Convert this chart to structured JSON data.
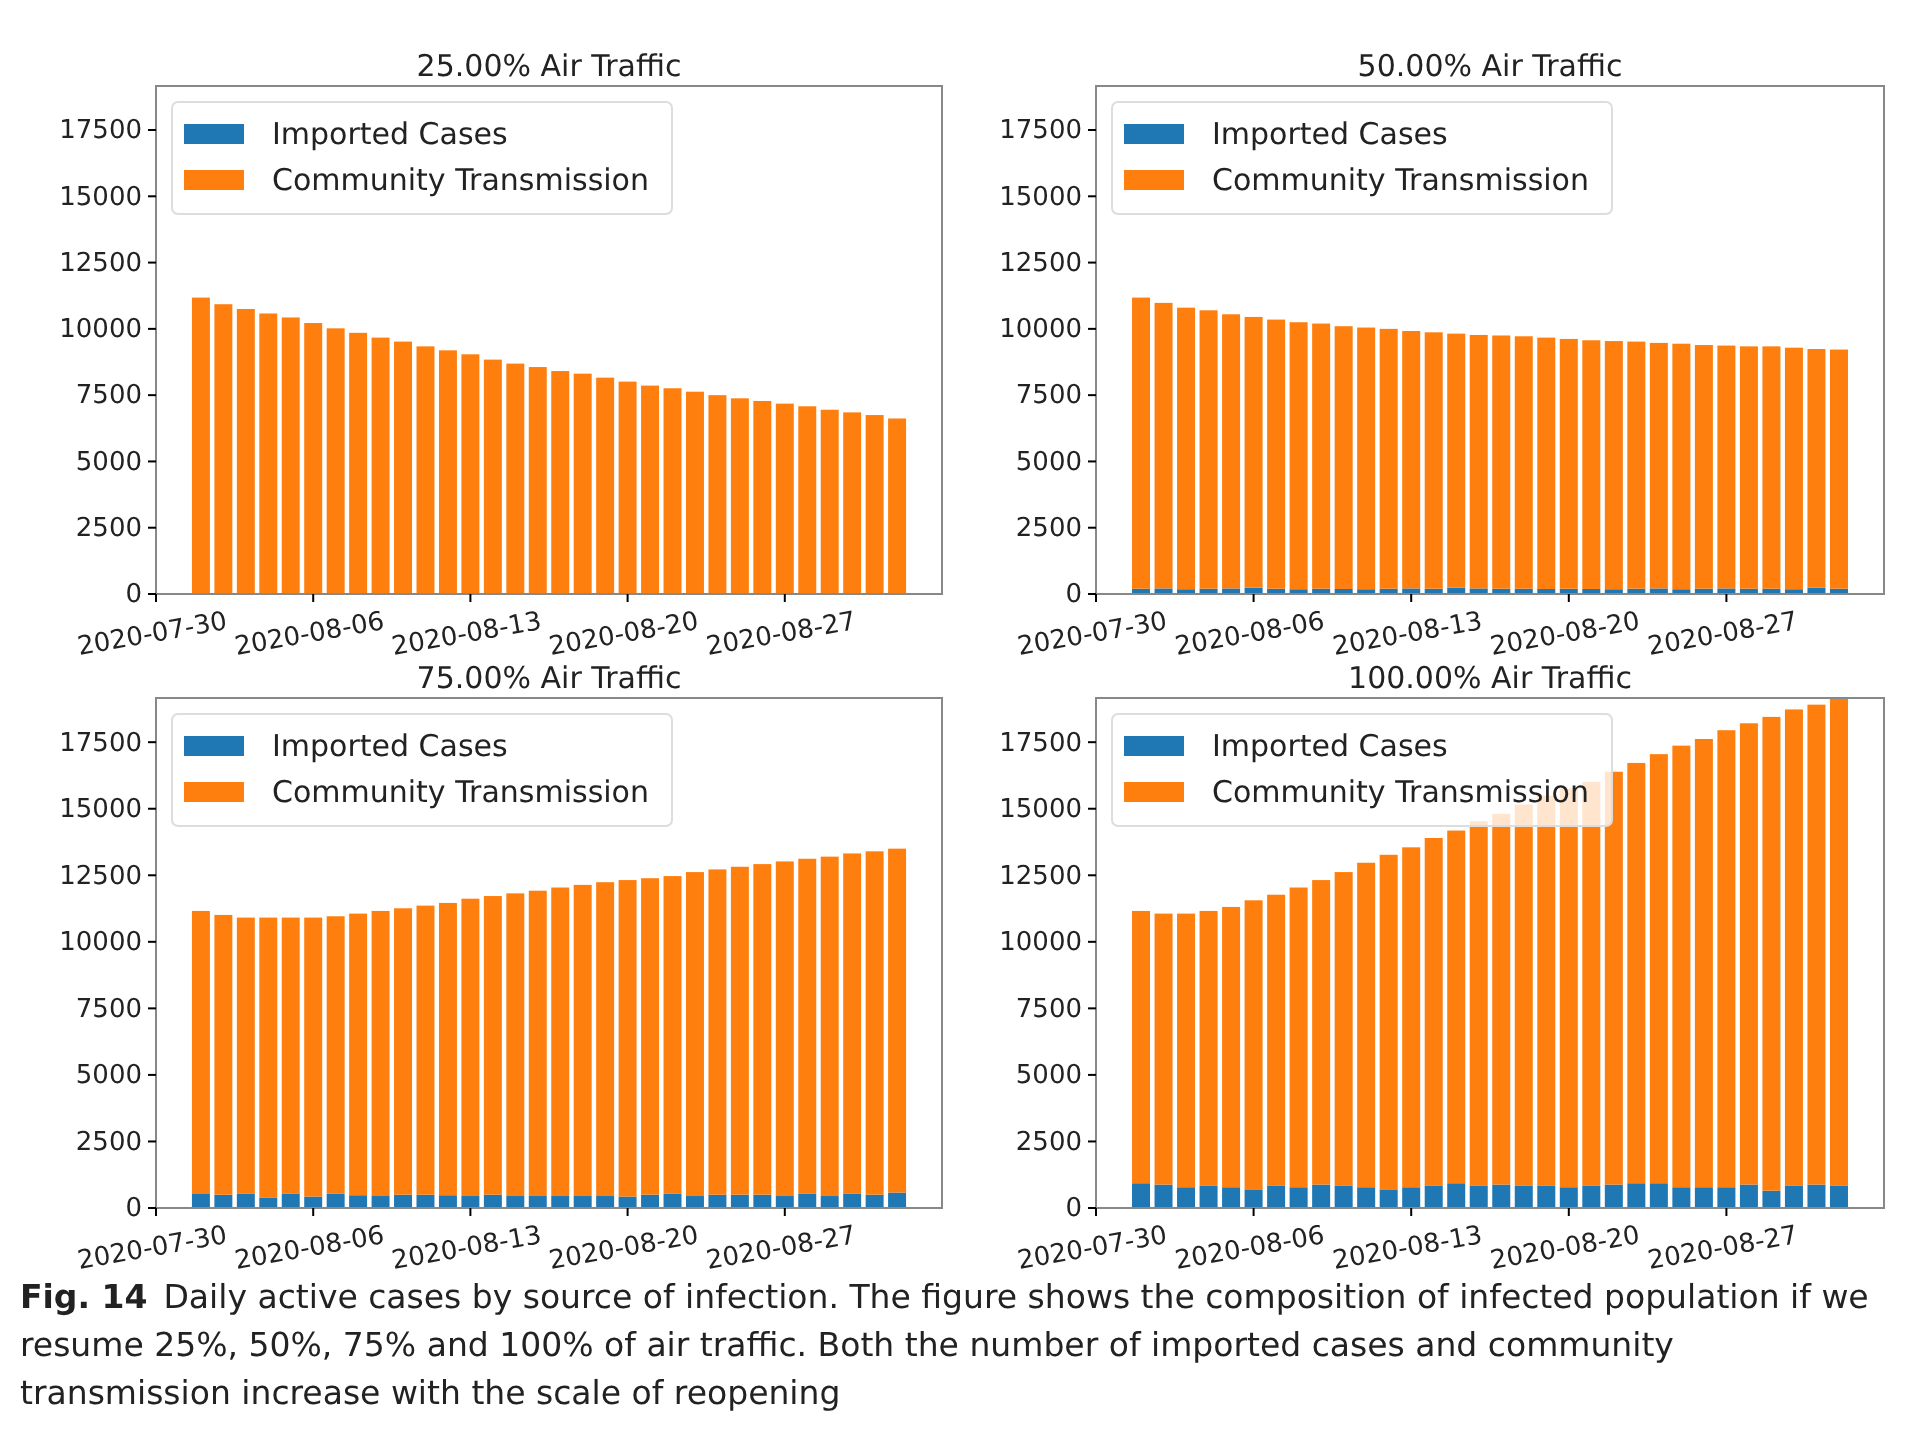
{
  "chart_data": [
    {
      "type": "bar",
      "title": "25.00% Air Traffic",
      "stacked": true,
      "legend": "top left",
      "x": [
        "2020-08-01",
        "2020-08-02",
        "2020-08-03",
        "2020-08-04",
        "2020-08-05",
        "2020-08-06",
        "2020-08-07",
        "2020-08-08",
        "2020-08-09",
        "2020-08-10",
        "2020-08-11",
        "2020-08-12",
        "2020-08-13",
        "2020-08-14",
        "2020-08-15",
        "2020-08-16",
        "2020-08-17",
        "2020-08-18",
        "2020-08-19",
        "2020-08-20",
        "2020-08-21",
        "2020-08-22",
        "2020-08-23",
        "2020-08-24",
        "2020-08-25",
        "2020-08-26",
        "2020-08-27",
        "2020-08-28",
        "2020-08-29",
        "2020-08-30",
        "2020-08-31",
        "2020-09-01"
      ],
      "xlim": [
        "2020-07-30",
        "2020-09-03"
      ],
      "xticks": [
        "2020-07-30",
        "2020-08-06",
        "2020-08-13",
        "2020-08-20",
        "2020-08-27"
      ],
      "ylim": [
        0,
        19160
      ],
      "yticks": [
        0,
        2500,
        5000,
        7500,
        10000,
        12500,
        15000,
        17500
      ],
      "series": [
        {
          "name": "Imported Cases",
          "color": "#1f77b4",
          "values": [
            30,
            30,
            30,
            30,
            30,
            30,
            30,
            30,
            30,
            30,
            30,
            30,
            30,
            30,
            30,
            30,
            30,
            30,
            30,
            30,
            30,
            30,
            30,
            30,
            30,
            30,
            30,
            30,
            30,
            30,
            30,
            30
          ]
        },
        {
          "name": "Community Transmission",
          "color": "#ff7f0e",
          "values": [
            11150,
            10900,
            10720,
            10550,
            10400,
            10190,
            9990,
            9820,
            9640,
            9490,
            9310,
            9160,
            9010,
            8810,
            8660,
            8530,
            8380,
            8280,
            8130,
            7980,
            7830,
            7730,
            7600,
            7470,
            7350,
            7250,
            7150,
            7050,
            6920,
            6820,
            6720,
            6590
          ]
        }
      ],
      "annotations": [
        "Fig. 14",
        "Daily active cases by source of infection. The figure shows the composition of infected population if we resume 25%, 50%, 75% and 100% of air traffic. Both the number of imported cases and community transmission increase with the scale of reopening"
      ]
    },
    {
      "type": "bar",
      "title": "50.00% Air Traffic",
      "stacked": true,
      "legend": "top left",
      "x": [
        "2020-08-01",
        "2020-08-02",
        "2020-08-03",
        "2020-08-04",
        "2020-08-05",
        "2020-08-06",
        "2020-08-07",
        "2020-08-08",
        "2020-08-09",
        "2020-08-10",
        "2020-08-11",
        "2020-08-12",
        "2020-08-13",
        "2020-08-14",
        "2020-08-15",
        "2020-08-16",
        "2020-08-17",
        "2020-08-18",
        "2020-08-19",
        "2020-08-20",
        "2020-08-21",
        "2020-08-22",
        "2020-08-23",
        "2020-08-24",
        "2020-08-25",
        "2020-08-26",
        "2020-08-27",
        "2020-08-28",
        "2020-08-29",
        "2020-08-30",
        "2020-08-31",
        "2020-09-01"
      ],
      "xlim": [
        "2020-07-30",
        "2020-09-03"
      ],
      "xticks": [
        "2020-07-30",
        "2020-08-06",
        "2020-08-13",
        "2020-08-20",
        "2020-08-27"
      ],
      "ylim": [
        0,
        19160
      ],
      "yticks": [
        0,
        2500,
        5000,
        7500,
        10000,
        12500,
        15000,
        17500
      ],
      "series": [
        {
          "name": "Imported Cases",
          "color": "#1f77b4",
          "values": [
            200,
            210,
            180,
            200,
            210,
            240,
            200,
            180,
            200,
            190,
            180,
            200,
            210,
            200,
            240,
            210,
            200,
            200,
            190,
            200,
            190,
            180,
            200,
            210,
            180,
            200,
            210,
            200,
            200,
            180,
            240,
            200
          ]
        },
        {
          "name": "Community Transmission",
          "color": "#ff7f0e",
          "values": [
            10980,
            10770,
            10620,
            10500,
            10340,
            10210,
            10150,
            10070,
            10000,
            9910,
            9870,
            9800,
            9710,
            9670,
            9580,
            9560,
            9550,
            9520,
            9480,
            9420,
            9380,
            9360,
            9320,
            9260,
            9260,
            9190,
            9160,
            9140,
            9140,
            9110,
            9000,
            9020
          ]
        }
      ]
    },
    {
      "type": "bar",
      "title": "75.00% Air Traffic",
      "stacked": true,
      "legend": "top left",
      "x": [
        "2020-08-01",
        "2020-08-02",
        "2020-08-03",
        "2020-08-04",
        "2020-08-05",
        "2020-08-06",
        "2020-08-07",
        "2020-08-08",
        "2020-08-09",
        "2020-08-10",
        "2020-08-11",
        "2020-08-12",
        "2020-08-13",
        "2020-08-14",
        "2020-08-15",
        "2020-08-16",
        "2020-08-17",
        "2020-08-18",
        "2020-08-19",
        "2020-08-20",
        "2020-08-21",
        "2020-08-22",
        "2020-08-23",
        "2020-08-24",
        "2020-08-25",
        "2020-08-26",
        "2020-08-27",
        "2020-08-28",
        "2020-08-29",
        "2020-08-30",
        "2020-08-31",
        "2020-09-01"
      ],
      "xlim": [
        "2020-07-30",
        "2020-09-03"
      ],
      "xticks": [
        "2020-07-30",
        "2020-08-06",
        "2020-08-13",
        "2020-08-20",
        "2020-08-27"
      ],
      "ylim": [
        0,
        19160
      ],
      "yticks": [
        0,
        2500,
        5000,
        7500,
        10000,
        12500,
        15000,
        17500
      ],
      "series": [
        {
          "name": "Imported Cases",
          "color": "#1f77b4",
          "values": [
            550,
            500,
            530,
            380,
            530,
            430,
            530,
            480,
            450,
            500,
            500,
            480,
            450,
            500,
            450,
            450,
            450,
            450,
            450,
            430,
            500,
            530,
            450,
            500,
            500,
            500,
            450,
            530,
            450,
            530,
            500,
            580
          ]
        },
        {
          "name": "Community Transmission",
          "color": "#ff7f0e",
          "values": [
            10610,
            10510,
            10380,
            10530,
            10380,
            10480,
            10430,
            10580,
            10710,
            10760,
            10860,
            10980,
            11170,
            11220,
            11370,
            11470,
            11590,
            11690,
            11790,
            11890,
            11890,
            11940,
            12170,
            12220,
            12320,
            12420,
            12570,
            12590,
            12750,
            12790,
            12900,
            12920
          ]
        }
      ]
    },
    {
      "type": "bar",
      "title": "100.00% Air Traffic",
      "stacked": true,
      "legend": "top left",
      "x": [
        "2020-08-01",
        "2020-08-02",
        "2020-08-03",
        "2020-08-04",
        "2020-08-05",
        "2020-08-06",
        "2020-08-07",
        "2020-08-08",
        "2020-08-09",
        "2020-08-10",
        "2020-08-11",
        "2020-08-12",
        "2020-08-13",
        "2020-08-14",
        "2020-08-15",
        "2020-08-16",
        "2020-08-17",
        "2020-08-18",
        "2020-08-19",
        "2020-08-20",
        "2020-08-21",
        "2020-08-22",
        "2020-08-23",
        "2020-08-24",
        "2020-08-25",
        "2020-08-26",
        "2020-08-27",
        "2020-08-28",
        "2020-08-29",
        "2020-08-30",
        "2020-08-31",
        "2020-09-01"
      ],
      "xlim": [
        "2020-07-30",
        "2020-09-03"
      ],
      "xticks": [
        "2020-07-30",
        "2020-08-06",
        "2020-08-13",
        "2020-08-20",
        "2020-08-27"
      ],
      "ylim": [
        0,
        19160
      ],
      "yticks": [
        0,
        2500,
        5000,
        7500,
        10000,
        12500,
        15000,
        17500
      ],
      "series": [
        {
          "name": "Imported Cases",
          "color": "#1f77b4",
          "values": [
            930,
            880,
            780,
            830,
            780,
            700,
            830,
            780,
            880,
            830,
            780,
            700,
            780,
            830,
            930,
            830,
            880,
            830,
            830,
            780,
            830,
            880,
            930,
            930,
            780,
            780,
            780,
            880,
            650,
            830,
            880,
            830
          ]
        },
        {
          "name": "Community Transmission",
          "color": "#ff7f0e",
          "values": [
            10230,
            10180,
            10280,
            10330,
            10530,
            10860,
            10940,
            11260,
            11440,
            11790,
            12190,
            12570,
            12770,
            13070,
            13250,
            13700,
            13930,
            14330,
            14660,
            14980,
            15180,
            15510,
            15790,
            16120,
            16590,
            16840,
            17170,
            17330,
            17800,
            17900,
            18030,
            18330
          ]
        }
      ]
    }
  ]
}
